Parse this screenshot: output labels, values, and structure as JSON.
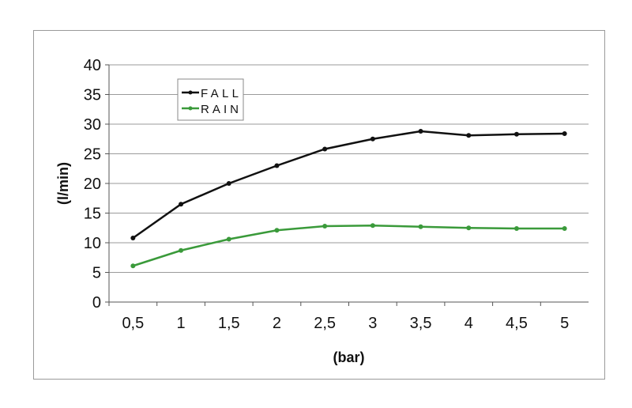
{
  "chart_data": {
    "type": "line",
    "title": "",
    "xlabel": "(bar)",
    "ylabel": "(l/min)",
    "categories": [
      "0,5",
      "1",
      "1,5",
      "2",
      "2,5",
      "3",
      "3,5",
      "4",
      "4,5",
      "5"
    ],
    "yticks": [
      "0",
      "5",
      "10",
      "15",
      "20",
      "25",
      "30",
      "35",
      "40"
    ],
    "ylim": [
      0,
      40
    ],
    "grid": "horizontal",
    "legend_placement": "top-left",
    "series": [
      {
        "name": "FALL",
        "color": "#111111",
        "values": [
          10.8,
          16.5,
          20.0,
          23.0,
          25.8,
          27.5,
          28.8,
          28.1,
          28.3,
          28.4
        ]
      },
      {
        "name": "RAIN",
        "color": "#3a9a3a",
        "values": [
          6.1,
          8.7,
          10.6,
          12.1,
          12.8,
          12.9,
          12.7,
          12.5,
          12.4,
          12.4
        ]
      }
    ]
  }
}
